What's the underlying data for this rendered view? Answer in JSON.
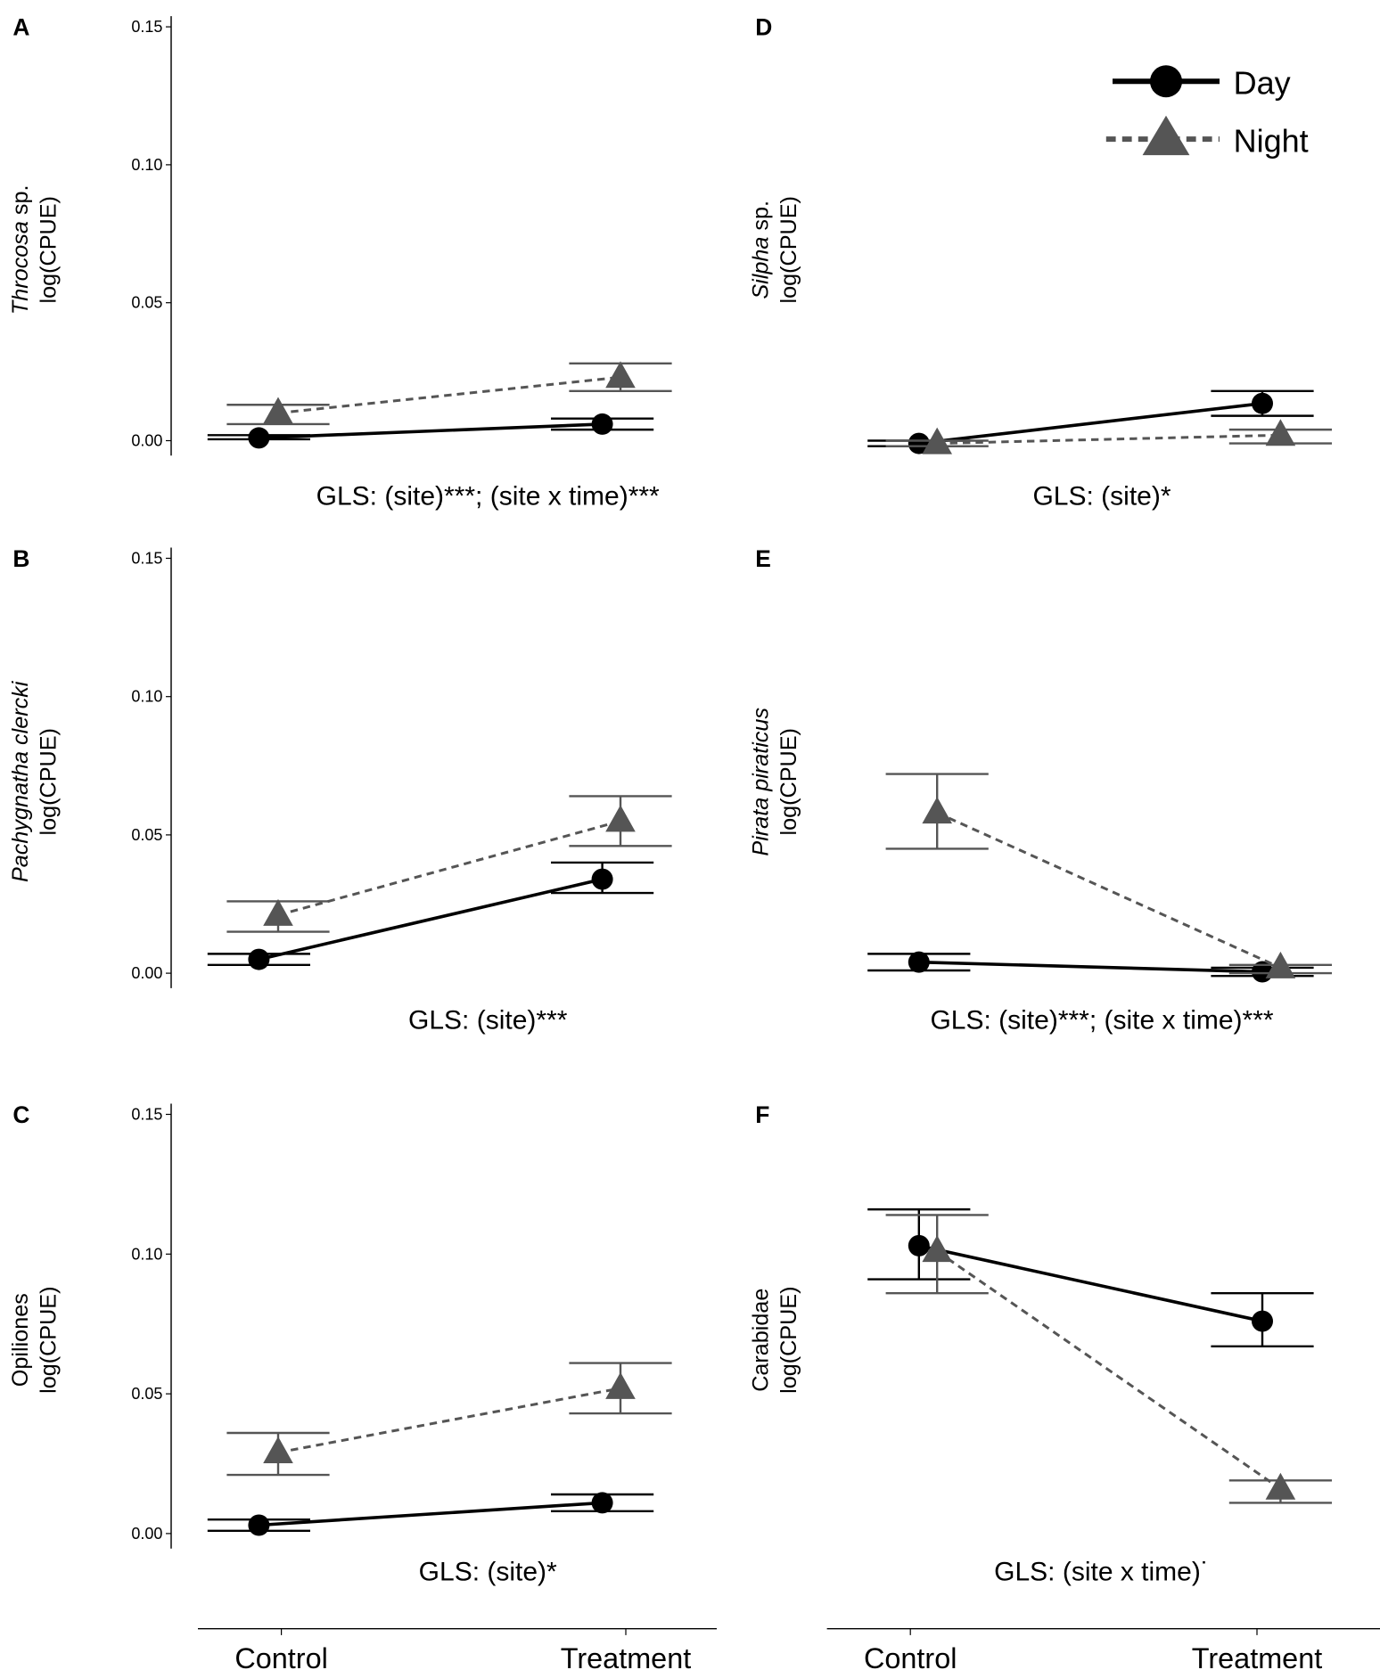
{
  "chart_data": {
    "type": "line",
    "categories": [
      "Control",
      "Treatment"
    ],
    "legend": {
      "placement": "top-right",
      "entries": [
        {
          "name": "Day",
          "marker": "circle",
          "line": "solid",
          "color": "#000000"
        },
        {
          "name": "Night",
          "marker": "triangle",
          "line": "dashed",
          "color": "#555555"
        }
      ]
    },
    "ylim": [
      0,
      0.15
    ],
    "yticks": [
      "0.00",
      "0.05",
      "0.10",
      "0.15"
    ],
    "panels": [
      {
        "letter": "A",
        "ylabel": [
          [
            {
              "text": "Throcosa",
              "italic": true
            },
            {
              "text": " sp.",
              "italic": false
            }
          ],
          "log(CPUE)"
        ],
        "annotation": "GLS: (site)***; (site x time)***",
        "show_yaxis": true,
        "series": [
          {
            "name": "Day",
            "values": [
              0.001,
              0.006
            ],
            "lower": [
              0.0005,
              0.004
            ],
            "upper": [
              0.002,
              0.008
            ]
          },
          {
            "name": "Night",
            "values": [
              0.01,
              0.023
            ],
            "lower": [
              0.006,
              0.018
            ],
            "upper": [
              0.013,
              0.028
            ]
          }
        ]
      },
      {
        "letter": "B",
        "ylabel": [
          [
            {
              "text": "Pachygnatha clercki",
              "italic": true
            }
          ],
          "log(CPUE)"
        ],
        "annotation": "GLS: (site)***",
        "show_yaxis": true,
        "series": [
          {
            "name": "Day",
            "values": [
              0.005,
              0.034
            ],
            "lower": [
              0.003,
              0.029
            ],
            "upper": [
              0.007,
              0.04
            ]
          },
          {
            "name": "Night",
            "values": [
              0.021,
              0.055
            ],
            "lower": [
              0.015,
              0.046
            ],
            "upper": [
              0.026,
              0.064
            ]
          }
        ]
      },
      {
        "letter": "C",
        "ylabel": [
          [
            {
              "text": "Opiliones",
              "italic": false
            }
          ],
          "log(CPUE)"
        ],
        "annotation": "GLS: (site)*",
        "show_yaxis": true,
        "series": [
          {
            "name": "Day",
            "values": [
              0.003,
              0.011
            ],
            "lower": [
              0.001,
              0.008
            ],
            "upper": [
              0.005,
              0.014
            ]
          },
          {
            "name": "Night",
            "values": [
              0.029,
              0.052
            ],
            "lower": [
              0.021,
              0.043
            ],
            "upper": [
              0.036,
              0.061
            ]
          }
        ]
      },
      {
        "letter": "D",
        "ylabel": [
          [
            {
              "text": "Silpha",
              "italic": true
            },
            {
              "text": " sp.",
              "italic": false
            }
          ],
          "log(CPUE)"
        ],
        "annotation": "GLS: (site)*",
        "show_yaxis": false,
        "series": [
          {
            "name": "Day",
            "values": [
              -0.001,
              0.0135
            ],
            "lower": [
              -0.002,
              0.009
            ],
            "upper": [
              0.0,
              0.018
            ]
          },
          {
            "name": "Night",
            "values": [
              -0.001,
              0.002
            ],
            "lower": [
              -0.002,
              -0.001
            ],
            "upper": [
              0.0,
              0.004
            ]
          }
        ]
      },
      {
        "letter": "E",
        "ylabel": [
          [
            {
              "text": "Pirata piraticus",
              "italic": true
            }
          ],
          "log(CPUE)"
        ],
        "annotation": "GLS: (site)***; (site x time)***",
        "show_yaxis": false,
        "series": [
          {
            "name": "Day",
            "values": [
              0.004,
              0.0005
            ],
            "lower": [
              0.001,
              -0.001
            ],
            "upper": [
              0.007,
              0.002
            ]
          },
          {
            "name": "Night",
            "values": [
              0.058,
              0.002
            ],
            "lower": [
              0.045,
              0.0
            ],
            "upper": [
              0.072,
              0.003
            ]
          }
        ]
      },
      {
        "letter": "F",
        "ylabel": [
          [
            {
              "text": "Carabidae",
              "italic": false
            }
          ],
          "log(CPUE)"
        ],
        "annotation": "GLS: (site x time)˙",
        "show_yaxis": false,
        "series": [
          {
            "name": "Day",
            "values": [
              0.103,
              0.076
            ],
            "lower": [
              0.091,
              0.067
            ],
            "upper": [
              0.116,
              0.086
            ]
          },
          {
            "name": "Night",
            "values": [
              0.101,
              0.016
            ],
            "lower": [
              0.086,
              0.011
            ],
            "upper": [
              0.114,
              0.019
            ]
          }
        ]
      }
    ]
  }
}
